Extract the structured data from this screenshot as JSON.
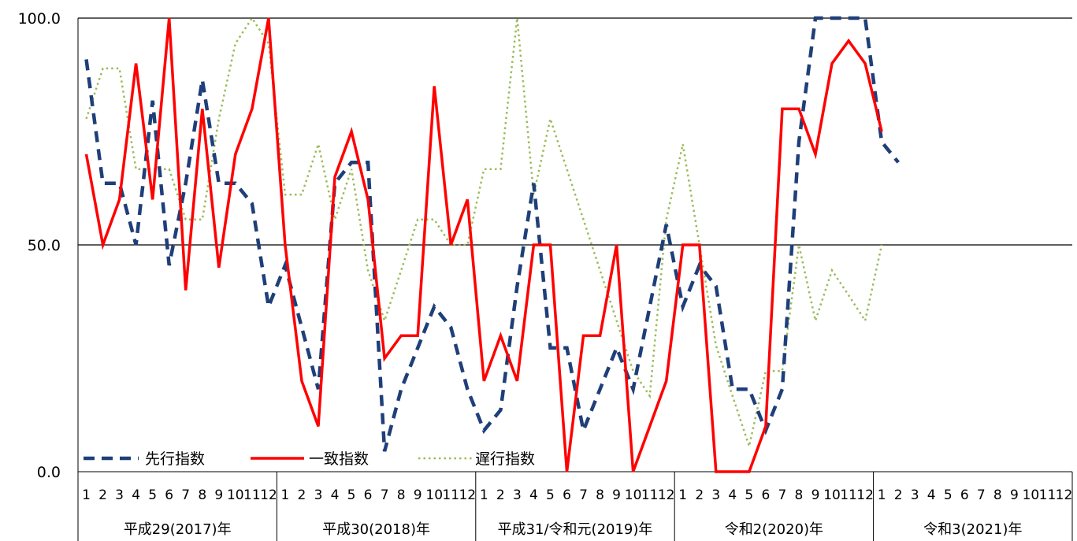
{
  "chart_data": {
    "type": "line",
    "title": "",
    "xlabel": "",
    "ylabel": "",
    "ylim": [
      0,
      100
    ],
    "y_ticks": [
      "0.0",
      "50.0",
      "100.0"
    ],
    "month_labels": [
      "1",
      "2",
      "3",
      "4",
      "5",
      "6",
      "7",
      "8",
      "9",
      "10",
      "11",
      "12"
    ],
    "year_groups": [
      "平成29(2017)年",
      "平成30(2018)年",
      "平成31/令和元(2019)年",
      "令和2(2020)年",
      "令和3(2021)年"
    ],
    "gridlines": [
      50,
      100
    ],
    "legend_position": "bottom-left",
    "series": [
      {
        "name": "先行指数",
        "style": "dashed",
        "color": "#1f3f79",
        "values": [
          90.9,
          63.6,
          63.6,
          50.0,
          81.8,
          45.5,
          63.6,
          86.4,
          63.6,
          63.6,
          59.1,
          36.4,
          45.5,
          31.8,
          18.2,
          63.6,
          68.2,
          68.2,
          4.5,
          18.2,
          27.3,
          36.4,
          31.8,
          18.2,
          9.1,
          13.6,
          40.9,
          63.6,
          27.3,
          27.3,
          9.1,
          18.2,
          27.3,
          18.2,
          36.4,
          54.5,
          36.4,
          45.5,
          40.9,
          18.2,
          18.2,
          9.1,
          18.2,
          72.7,
          100.0,
          100.0,
          100.0,
          100.0,
          72.7,
          68.2
        ]
      },
      {
        "name": "一致指数",
        "style": "solid",
        "color": "#ff0000",
        "values": [
          70.0,
          50.0,
          60.0,
          90.0,
          60.0,
          100.0,
          40.0,
          80.0,
          45.0,
          70.0,
          80.0,
          100.0,
          50.0,
          20.0,
          10.0,
          65.0,
          75.0,
          60.0,
          25.0,
          30.0,
          30.0,
          85.0,
          50.0,
          60.0,
          20.0,
          30.0,
          20.0,
          50.0,
          50.0,
          0.0,
          30.0,
          30.0,
          50.0,
          0.0,
          10.0,
          20.0,
          50.0,
          50.0,
          0.0,
          0.0,
          0.0,
          10.0,
          80.0,
          80.0,
          70.0,
          90.0,
          95.0,
          90.0,
          75.0
        ]
      },
      {
        "name": "遅行指数",
        "style": "dotted",
        "color": "#9bbb59",
        "values": [
          77.8,
          88.9,
          88.9,
          66.7,
          66.7,
          66.7,
          55.6,
          55.6,
          77.8,
          94.4,
          100.0,
          94.4,
          61.1,
          61.1,
          72.2,
          55.6,
          66.7,
          44.4,
          33.3,
          44.4,
          55.6,
          55.6,
          50.0,
          50.0,
          66.7,
          66.7,
          100.0,
          61.1,
          77.8,
          66.7,
          55.6,
          44.4,
          33.3,
          22.2,
          16.7,
          55.6,
          72.2,
          50.0,
          27.8,
          16.7,
          5.6,
          22.2,
          22.2,
          50.0,
          33.3,
          44.4,
          38.9,
          33.3,
          50.0
        ]
      }
    ]
  }
}
